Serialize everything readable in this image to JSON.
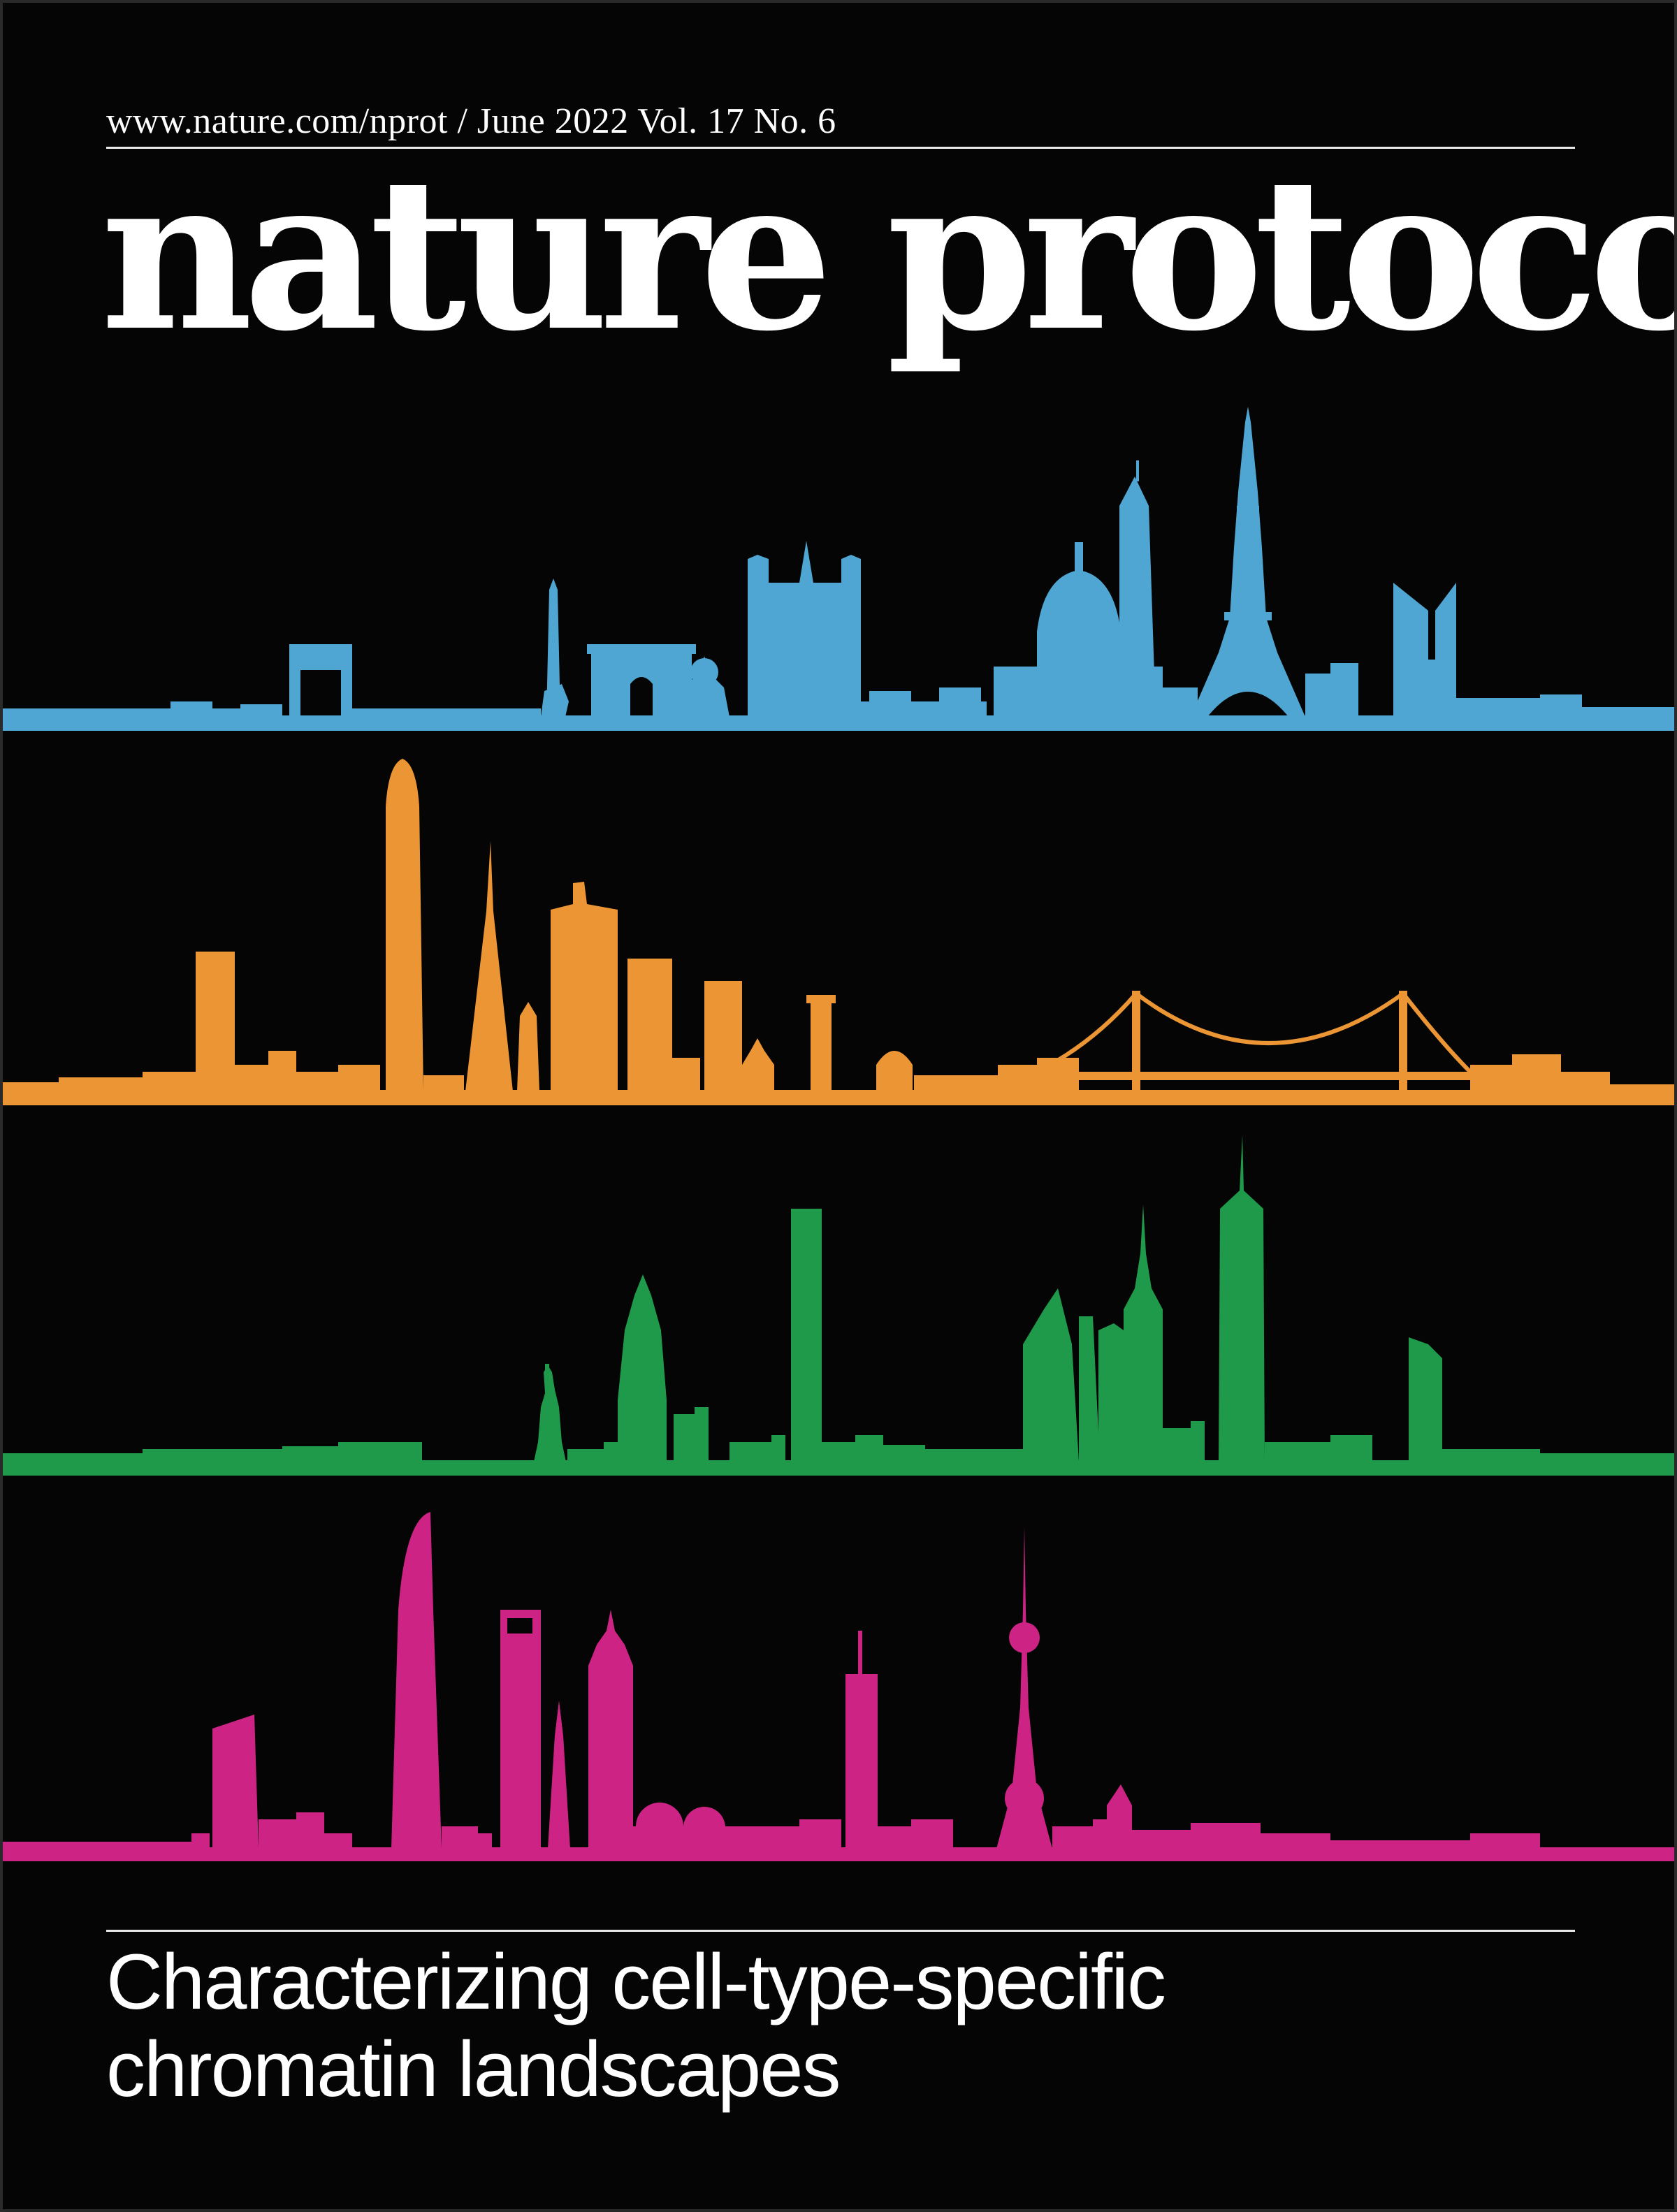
{
  "cover": {
    "issue_line": "www.nature.com/nprot / June 2022  Vol. 17 No. 6",
    "masthead": "nature protocols",
    "headline_line1": "Characterizing cell-type-specific",
    "headline_line2": "chromatin landscapes"
  },
  "skylines": [
    {
      "city_icon": "paris-skyline-icon",
      "color": "#4fa6d3"
    },
    {
      "city_icon": "san-francisco-skyline-icon",
      "color": "#ec9534"
    },
    {
      "city_icon": "new-york-skyline-icon",
      "color": "#1f9a4a"
    },
    {
      "city_icon": "shanghai-skyline-icon",
      "color": "#cc2385"
    }
  ],
  "colors": {
    "background": "#050505",
    "text": "#ffffff"
  }
}
